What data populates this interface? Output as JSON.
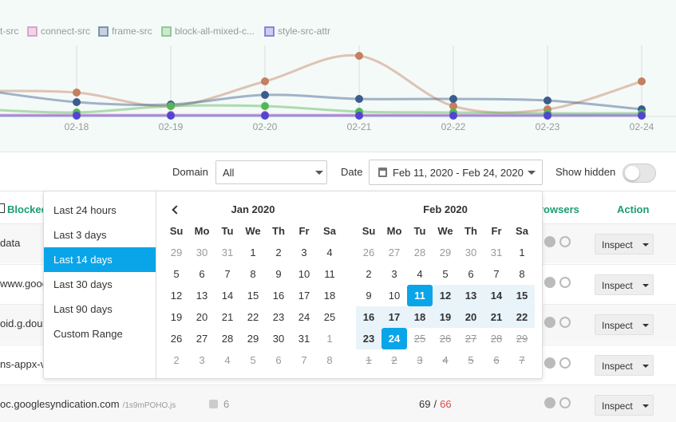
{
  "chart_data": {
    "type": "line",
    "categories": [
      null,
      "02-18",
      "02-19",
      "02-20",
      "02-21",
      "02-22",
      "02-23",
      "02-24"
    ],
    "ylim": [
      0,
      90
    ],
    "series": [
      {
        "name": "t-src",
        "color": "#c4805f",
        "values": [
          32,
          30,
          13,
          44,
          76,
          13,
          9,
          44
        ]
      },
      {
        "name": "connect-src",
        "color": "#d46fc0",
        "values": [
          2,
          2,
          2,
          2,
          2,
          2,
          2,
          2
        ]
      },
      {
        "name": "frame-src",
        "color": "#3b5c8c",
        "values": [
          33,
          18,
          15,
          27,
          22,
          22,
          20,
          9
        ]
      },
      {
        "name": "block-all-mixed-c...",
        "color": "#55b657",
        "values": [
          9,
          5,
          13,
          13,
          6,
          5,
          4,
          4
        ]
      },
      {
        "name": "style-src-attr",
        "color": "#5146d2",
        "values": [
          1,
          1,
          1,
          1,
          1,
          1,
          1,
          1
        ]
      }
    ]
  },
  "filters": {
    "domain_label": "Domain",
    "domain_value": "All",
    "date_label": "Date",
    "date_value": "Feb 11, 2020 - Feb 24, 2020",
    "show_hidden_label": "Show hidden"
  },
  "table": {
    "headers": [
      "Blocked",
      "rowsers",
      "Action"
    ],
    "rows": [
      {
        "domain": "data",
        "action": "Inspect"
      },
      {
        "domain": "www.goog",
        "action": "Inspect"
      },
      {
        "domain": "oid.g.doub",
        "action": "Inspect"
      },
      {
        "domain": "ns-appx-v",
        "action": "Inspect"
      },
      {
        "domain": "oc.googlesyndication.com",
        "path": "/1s9mPOHO.js",
        "files": 6,
        "count": 69,
        "separator": "/",
        "blocked": 66,
        "action": "Inspect"
      }
    ]
  },
  "date_picker": {
    "ranges": [
      "Last 24 hours",
      "Last 3 days",
      "Last 14 days",
      "Last 30 days",
      "Last 90 days",
      "Custom Range"
    ],
    "weekdays": [
      "Su",
      "Mo",
      "Tu",
      "We",
      "Th",
      "Fr",
      "Sa"
    ],
    "months": [
      {
        "title": "Jan 2020",
        "weeks": [
          [
            29,
            30,
            31,
            1,
            2,
            3,
            4
          ],
          [
            5,
            6,
            7,
            8,
            9,
            10,
            11
          ],
          [
            12,
            13,
            14,
            15,
            16,
            17,
            18
          ],
          [
            19,
            20,
            21,
            22,
            23,
            24,
            25
          ],
          [
            26,
            27,
            28,
            29,
            30,
            31,
            1
          ],
          [
            2,
            3,
            4,
            5,
            6,
            7,
            8
          ]
        ]
      },
      {
        "title": "Feb 2020",
        "weeks": [
          [
            26,
            27,
            28,
            29,
            30,
            31,
            1
          ],
          [
            2,
            3,
            4,
            5,
            6,
            7,
            8
          ],
          [
            9,
            10,
            11,
            12,
            13,
            14,
            15
          ],
          [
            16,
            17,
            18,
            19,
            20,
            21,
            22
          ],
          [
            23,
            24,
            25,
            26,
            27,
            28,
            29
          ],
          [
            1,
            2,
            3,
            4,
            5,
            6,
            7
          ]
        ]
      }
    ]
  }
}
